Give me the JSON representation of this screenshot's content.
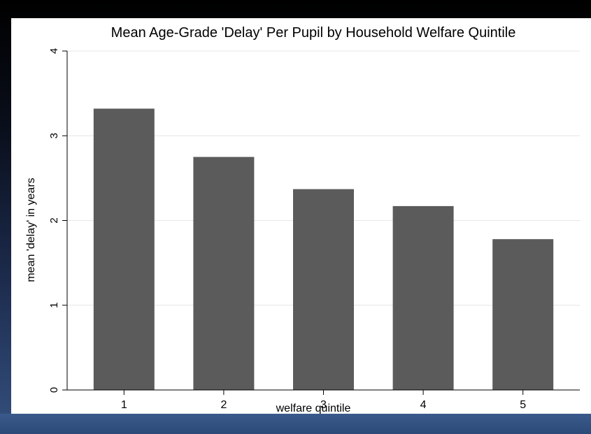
{
  "chart_data": {
    "type": "bar",
    "title": "Mean Age-Grade 'Delay' Per Pupil by Household Welfare Quintile",
    "xlabel": "welfare quintile",
    "ylabel": "mean 'delay' in years",
    "categories": [
      "1",
      "2",
      "3",
      "4",
      "5"
    ],
    "values": [
      3.32,
      2.75,
      2.37,
      2.17,
      1.78
    ],
    "ylim": [
      0,
      4
    ],
    "yticks": [
      "0",
      "1",
      "2",
      "3",
      "4"
    ],
    "grid": true,
    "legend": "none",
    "colors": {
      "bar": "#5b5b5b",
      "grid": "#e6e6e6",
      "axis": "#000000",
      "plot_background": "#ffffff"
    }
  }
}
